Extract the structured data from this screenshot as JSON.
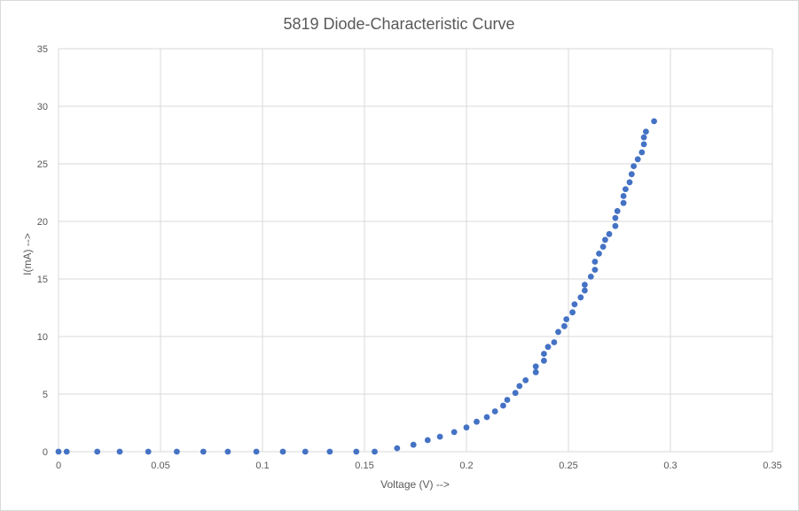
{
  "chart_data": {
    "type": "scatter",
    "title": "5819 Diode-Characteristic Curve",
    "xlabel": "Voltage (V)  -->",
    "ylabel": "I(mA) -->",
    "xlim": [
      0,
      0.35
    ],
    "ylim": [
      0,
      35
    ],
    "xticks": [
      "0",
      "0.05",
      "0.1",
      "0.15",
      "0.2",
      "0.25",
      "0.3",
      "0.35"
    ],
    "yticks": [
      "0",
      "5",
      "10",
      "15",
      "20",
      "25",
      "30",
      "35"
    ],
    "xtick_values": [
      0,
      0.05,
      0.1,
      0.15,
      0.2,
      0.25,
      0.3,
      0.35
    ],
    "ytick_values": [
      0,
      5,
      10,
      15,
      20,
      25,
      30,
      35
    ],
    "grid": true,
    "legend": "none",
    "marker_color": "#4472c4",
    "series": [
      {
        "x": [
          0,
          0.004,
          0.019,
          0.03,
          0.044,
          0.058,
          0.071,
          0.083,
          0.097,
          0.11,
          0.121,
          0.133,
          0.146,
          0.155,
          0.166,
          0.174,
          0.181,
          0.187,
          0.194,
          0.2,
          0.205,
          0.21,
          0.214,
          0.218,
          0.22,
          0.224,
          0.226,
          0.229,
          0.234,
          0.234,
          0.238,
          0.238,
          0.24,
          0.243,
          0.245,
          0.248,
          0.249,
          0.252,
          0.253,
          0.256,
          0.258,
          0.258,
          0.261,
          0.263,
          0.263,
          0.265,
          0.267,
          0.268,
          0.27,
          0.273,
          0.273,
          0.274,
          0.277,
          0.277,
          0.278,
          0.28,
          0.281,
          0.282,
          0.284,
          0.286,
          0.287,
          0.287,
          0.288,
          0.292
        ],
        "y": [
          0,
          0,
          0,
          0,
          0,
          0,
          0,
          0,
          0,
          0,
          0,
          0,
          0,
          0,
          0.3,
          0.6,
          1.0,
          1.3,
          1.7,
          2.1,
          2.6,
          3.0,
          3.5,
          4.0,
          4.5,
          5.1,
          5.7,
          6.2,
          6.9,
          7.4,
          7.9,
          8.5,
          9.1,
          9.5,
          10.4,
          10.9,
          11.5,
          12.1,
          12.8,
          13.4,
          14.0,
          14.5,
          15.2,
          15.8,
          16.5,
          17.2,
          17.8,
          18.4,
          18.9,
          19.6,
          20.3,
          20.9,
          21.6,
          22.2,
          22.8,
          23.4,
          24.1,
          24.8,
          25.4,
          26.0,
          26.7,
          27.3,
          27.8,
          28.7
        ]
      }
    ]
  }
}
